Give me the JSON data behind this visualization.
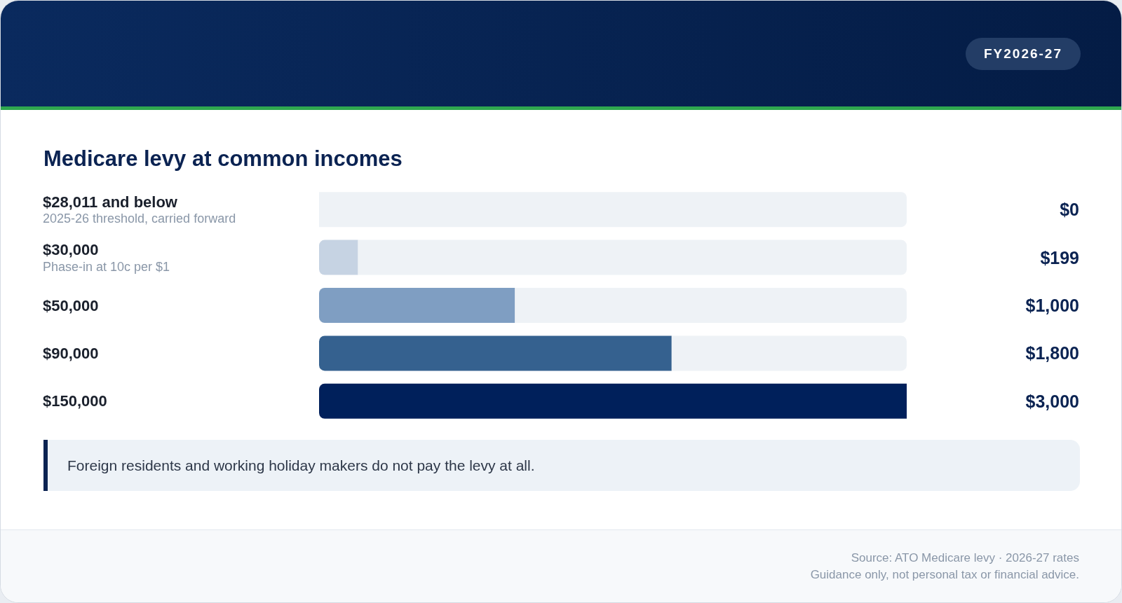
{
  "chart_data": {
    "type": "bar",
    "orientation": "horizontal",
    "stacked": true,
    "title": "Medicare levy at common incomes",
    "subtitle": "FY2026-27",
    "categories": [
      "$28,011 and below\n2025-26 threshold, carried forward",
      "$30,000\nPhase-in at 10c per $1",
      "$50,000",
      "$90,000",
      "$150,000"
    ],
    "series": [
      {
        "values": [
          0,
          199,
          1000,
          1800,
          3000
        ],
        "value_labels": [
          "$0",
          "$199",
          "$1,000",
          "$1,800",
          "$3,000"
        ],
        "colors": [
          "#e2e8f0",
          "#c6d3e3",
          "#7f9ec2",
          "#35618f",
          "#00205b"
        ]
      },
      {
        "values": [
          3000,
          2801,
          2000,
          1200,
          0
        ],
        "color": "#eef2f6"
      }
    ],
    "xlim": [
      0,
      3000
    ],
    "tick_labels": "y",
    "annotations": [
      "Foreign residents and working holiday makers do not pay the levy at all.",
      "Source: ATO Medicare levy · 2026-27 rates",
      "Guidance only, not personal tax or financial advice."
    ]
  }
}
